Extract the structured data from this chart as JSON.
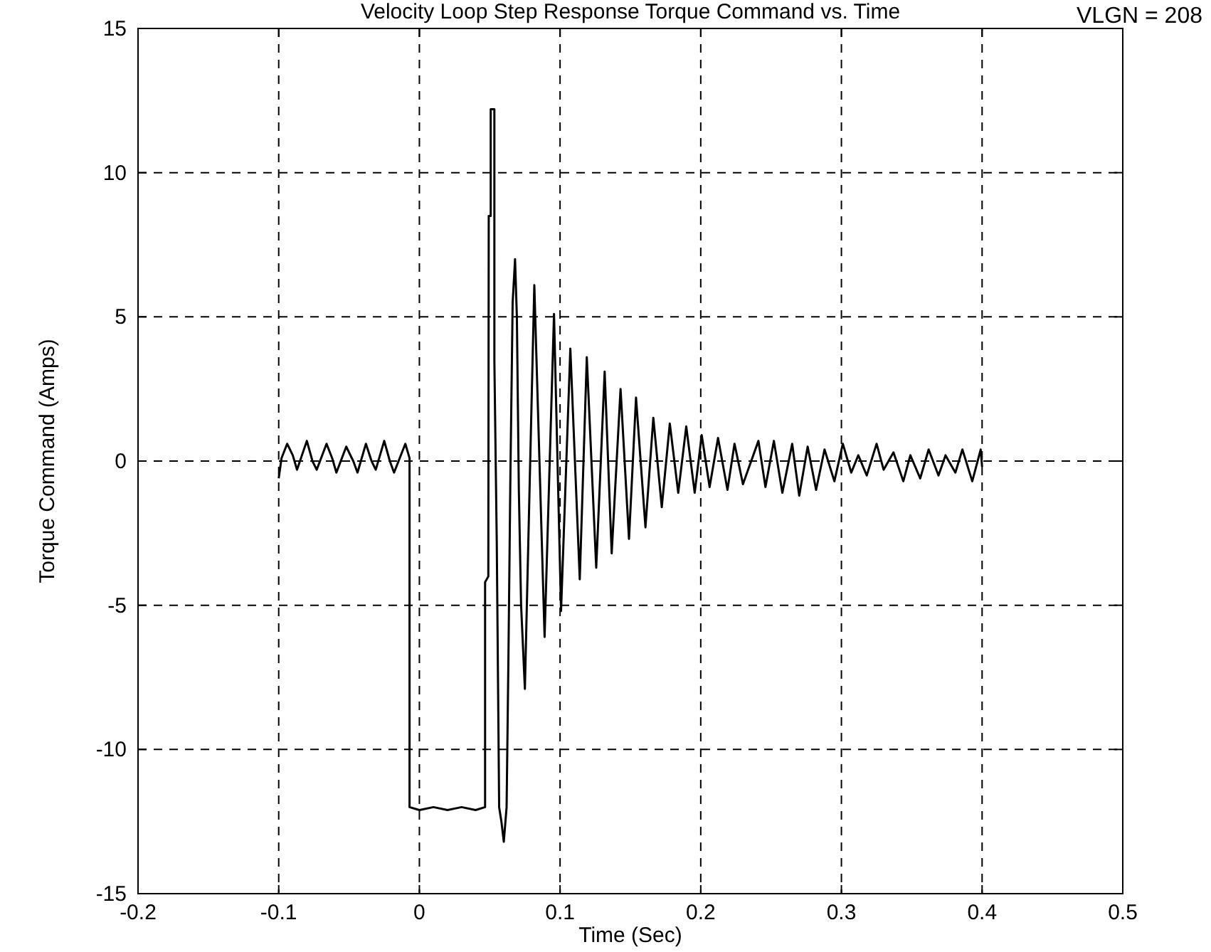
{
  "chart_data": {
    "type": "line",
    "title": "Velocity Loop Step Response Torque Command vs. Time",
    "xlabel": "Time (Sec)",
    "ylabel": "Torque Command (Amps)",
    "annotations": [
      "VLGN = 208"
    ],
    "x": [
      -0.1,
      -0.098,
      -0.094,
      -0.09,
      -0.087,
      -0.08,
      -0.076,
      -0.073,
      -0.066,
      -0.062,
      -0.059,
      -0.052,
      -0.047,
      -0.044,
      -0.038,
      -0.034,
      -0.031,
      -0.025,
      -0.021,
      -0.018,
      -0.01,
      -0.007,
      -0.007,
      0.0,
      0.01,
      0.02,
      0.03,
      0.04,
      0.0467,
      0.0467,
      0.049,
      0.0493,
      0.0507,
      0.0507,
      0.0533,
      0.0533,
      0.055,
      0.0567,
      0.0583,
      0.06,
      0.062,
      0.0633,
      0.0647,
      0.0663,
      0.068,
      0.0693,
      0.0707,
      0.0723,
      0.075,
      0.0817,
      0.089,
      0.0957,
      0.1007,
      0.1073,
      0.114,
      0.119,
      0.1257,
      0.1317,
      0.1367,
      0.143,
      0.149,
      0.154,
      0.1607,
      0.1663,
      0.1723,
      0.178,
      0.184,
      0.1897,
      0.1957,
      0.2007,
      0.2063,
      0.2123,
      0.219,
      0.224,
      0.23,
      0.241,
      0.246,
      0.252,
      0.258,
      0.265,
      0.27,
      0.276,
      0.282,
      0.288,
      0.295,
      0.301,
      0.307,
      0.312,
      0.318,
      0.325,
      0.33,
      0.337,
      0.344,
      0.349,
      0.356,
      0.362,
      0.369,
      0.374,
      0.381,
      0.386,
      0.393,
      0.399,
      0.4
    ],
    "series": [
      {
        "color": "#000000",
        "values": [
          -0.6,
          0.1,
          0.6,
          0.2,
          -0.3,
          0.7,
          0.0,
          -0.3,
          0.6,
          0.1,
          -0.4,
          0.5,
          0.0,
          -0.4,
          0.6,
          0.0,
          -0.3,
          0.7,
          0.0,
          -0.4,
          0.6,
          0.1,
          -12,
          -12.1,
          -12,
          -12.1,
          -12,
          -12.1,
          -12,
          -4.2,
          -4,
          8.5,
          8.5,
          12.2,
          12.2,
          3.5,
          -2.8,
          -12,
          -12.5,
          -13.2,
          -12,
          -6.8,
          -0.5,
          5.5,
          7.0,
          5,
          -1,
          -5,
          -7.9,
          6.1,
          -6.1,
          5.1,
          -5.2,
          3.9,
          -4.1,
          3.6,
          -3.7,
          3.1,
          -3.2,
          2.5,
          -2.7,
          2.2,
          -2.3,
          1.5,
          -1.6,
          1.3,
          -1.1,
          1.2,
          -1.1,
          0.9,
          -0.9,
          0.8,
          -1.0,
          0.6,
          -0.8,
          0.7,
          -0.9,
          0.7,
          -1.1,
          0.6,
          -1.2,
          0.5,
          -1.0,
          0.4,
          -0.7,
          0.6,
          -0.4,
          0.2,
          -0.5,
          0.6,
          -0.3,
          0.3,
          -0.7,
          0.2,
          -0.6,
          0.4,
          -0.5,
          0.2,
          -0.4,
          0.4,
          -0.7,
          0.4,
          -0.2
        ]
      }
    ],
    "xlim": [
      -0.2,
      0.5
    ],
    "xticks": [
      -0.2,
      -0.1,
      0,
      0.1,
      0.2,
      0.3,
      0.4,
      0.5
    ],
    "ylim": [
      -15,
      15
    ],
    "yticks": [
      -15,
      -10,
      -5,
      0,
      5,
      10,
      15
    ],
    "grid": true,
    "marker": "none",
    "line_style": "solid"
  }
}
